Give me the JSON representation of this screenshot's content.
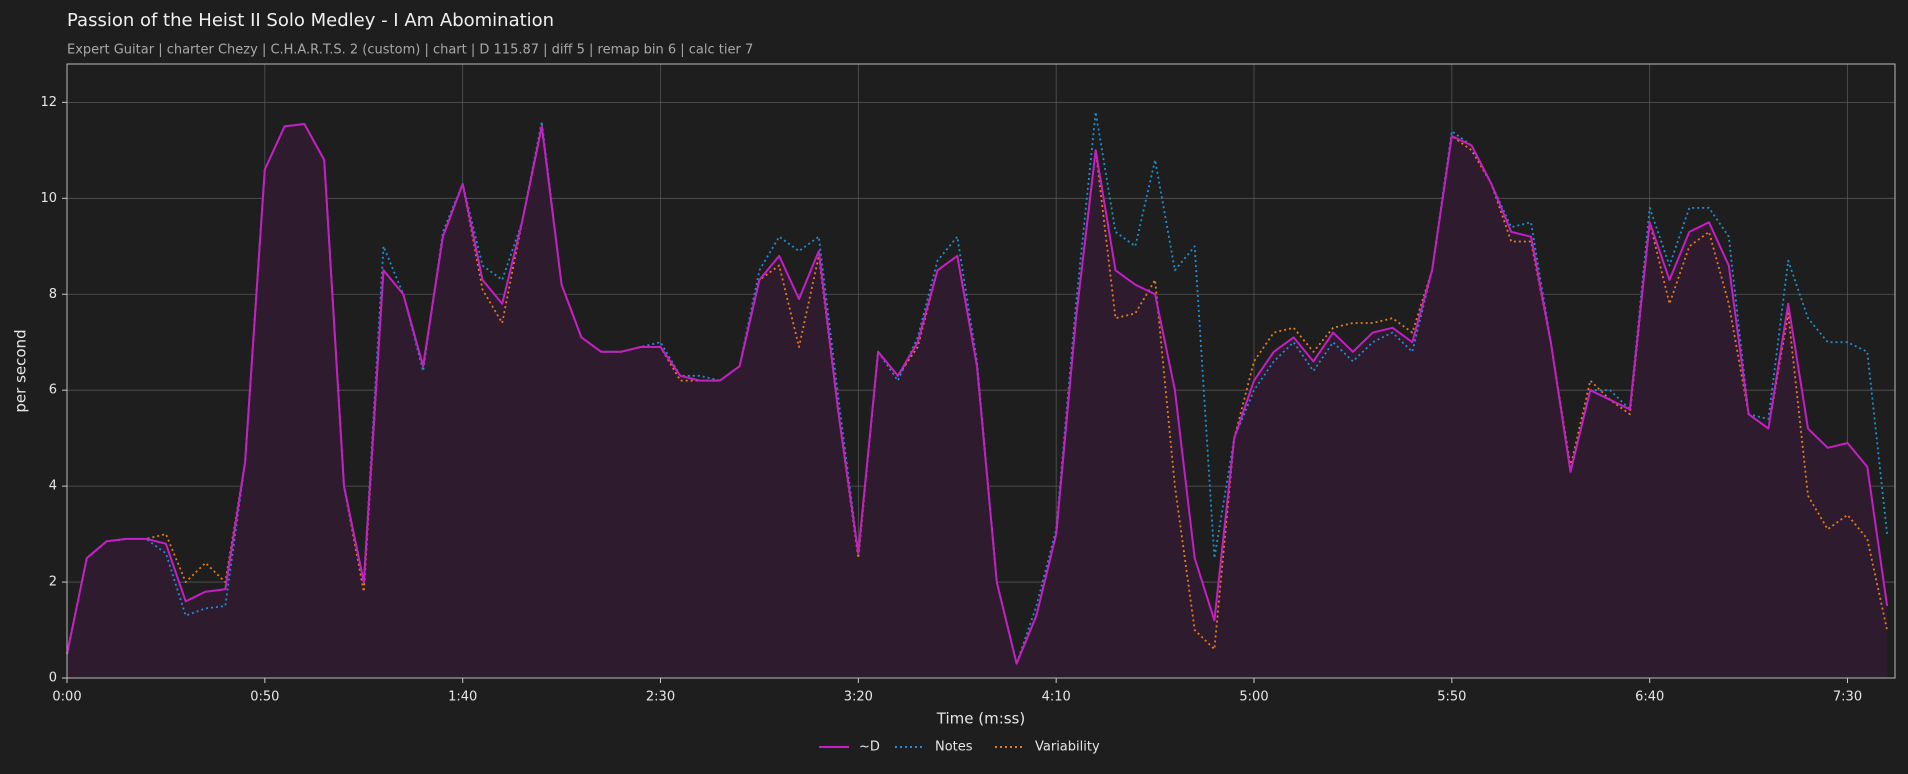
{
  "chart_data": {
    "type": "line",
    "title": "Passion of the Heist II Solo Medley - I Am Abomination",
    "subtitle": "Expert Guitar  |  charter Chezy  |  C.H.A.R.T.S. 2 (custom)  |  chart  |  D 115.87  |  diff 5  |  remap bin 6  |  calc tier 7",
    "x_label": "Time (m:ss)",
    "y_label": "per second",
    "x": [
      0,
      5,
      10,
      15,
      20,
      25,
      30,
      35,
      40,
      45,
      50,
      55,
      60,
      65,
      70,
      75,
      80,
      85,
      90,
      95,
      100,
      105,
      110,
      115,
      120,
      125,
      130,
      135,
      140,
      145,
      150,
      155,
      160,
      165,
      170,
      175,
      180,
      185,
      190,
      195,
      200,
      205,
      210,
      215,
      220,
      225,
      230,
      235,
      240,
      245,
      250,
      255,
      260,
      265,
      270,
      275,
      280,
      285,
      290,
      295,
      300,
      305,
      310,
      315,
      320,
      325,
      330,
      335,
      340,
      345,
      350,
      355,
      360,
      365,
      370,
      375,
      380,
      385,
      390,
      395,
      400,
      405,
      410,
      415,
      420,
      425,
      430,
      435,
      440,
      445,
      450,
      455,
      460
    ],
    "series": [
      {
        "name": "~D",
        "color": "#c41fc4",
        "style": "solid",
        "fill": "#2e1b2e",
        "values": [
          0.5,
          2.5,
          2.85,
          2.9,
          2.9,
          2.8,
          1.6,
          1.8,
          1.85,
          4.5,
          10.6,
          11.5,
          11.55,
          10.8,
          4.0,
          2.0,
          8.5,
          8.0,
          6.5,
          9.2,
          10.3,
          8.3,
          7.8,
          9.5,
          11.5,
          8.2,
          7.1,
          6.8,
          6.8,
          6.9,
          6.9,
          6.3,
          6.2,
          6.2,
          6.5,
          8.3,
          8.8,
          7.9,
          8.9,
          5.5,
          2.6,
          6.8,
          6.3,
          7.0,
          8.5,
          8.8,
          6.5,
          2.0,
          0.3,
          1.3,
          3.0,
          7.5,
          11.0,
          8.5,
          8.2,
          8.0,
          6.0,
          2.5,
          1.2,
          5.0,
          6.2,
          6.8,
          7.1,
          6.6,
          7.2,
          6.8,
          7.2,
          7.3,
          7.0,
          8.5,
          11.3,
          11.1,
          10.3,
          9.3,
          9.2,
          7.0,
          4.3,
          6.0,
          5.8,
          5.6,
          9.5,
          8.3,
          9.3,
          9.5,
          8.6,
          5.5,
          5.2,
          7.8,
          5.2,
          4.8,
          4.9,
          4.4,
          1.5
        ]
      },
      {
        "name": "Notes",
        "color": "#1f8fd0",
        "style": "dotted",
        "values": [
          0.5,
          2.5,
          2.85,
          2.9,
          2.9,
          2.6,
          1.3,
          1.45,
          1.5,
          4.5,
          10.6,
          11.5,
          11.55,
          10.8,
          4.0,
          2.0,
          9.0,
          8.0,
          6.4,
          9.3,
          10.3,
          8.6,
          8.3,
          9.5,
          11.6,
          8.2,
          7.1,
          6.8,
          6.8,
          6.9,
          7.0,
          6.3,
          6.3,
          6.2,
          6.5,
          8.5,
          9.2,
          8.9,
          9.2,
          5.8,
          2.6,
          6.8,
          6.2,
          7.1,
          8.7,
          9.2,
          6.6,
          2.0,
          0.3,
          1.5,
          3.1,
          7.8,
          11.8,
          9.3,
          9.0,
          10.8,
          8.5,
          9.0,
          2.5,
          5.0,
          6.0,
          6.6,
          7.0,
          6.4,
          7.0,
          6.6,
          7.0,
          7.2,
          6.8,
          8.5,
          11.4,
          11.1,
          10.3,
          9.4,
          9.5,
          7.0,
          4.3,
          6.0,
          6.0,
          5.6,
          9.8,
          8.6,
          9.8,
          9.8,
          9.2,
          5.5,
          5.4,
          8.7,
          7.5,
          7.0,
          7.0,
          6.8,
          3.0
        ]
      },
      {
        "name": "Variability",
        "color": "#e37c1c",
        "style": "dotted",
        "values": [
          0.5,
          2.5,
          2.85,
          2.9,
          2.9,
          3.0,
          2.0,
          2.4,
          2.0,
          4.5,
          10.6,
          11.5,
          11.55,
          10.8,
          4.0,
          1.8,
          8.5,
          8.0,
          6.5,
          9.2,
          10.3,
          8.1,
          7.4,
          9.5,
          11.5,
          8.2,
          7.1,
          6.8,
          6.8,
          6.9,
          6.9,
          6.2,
          6.2,
          6.2,
          6.5,
          8.3,
          8.6,
          6.9,
          8.8,
          5.5,
          2.5,
          6.8,
          6.3,
          6.9,
          8.5,
          8.8,
          6.5,
          2.0,
          0.3,
          1.3,
          3.0,
          7.5,
          11.0,
          7.5,
          7.6,
          8.3,
          4.0,
          1.0,
          0.6,
          5.0,
          6.6,
          7.2,
          7.3,
          6.8,
          7.3,
          7.4,
          7.4,
          7.5,
          7.2,
          8.5,
          11.3,
          11.0,
          10.3,
          9.1,
          9.1,
          7.0,
          4.4,
          6.2,
          5.8,
          5.5,
          9.5,
          7.8,
          9.0,
          9.3,
          7.8,
          5.5,
          5.2,
          7.6,
          3.8,
          3.1,
          3.4,
          2.9,
          1.0
        ]
      }
    ],
    "xlim": [
      0,
      462
    ],
    "ylim": [
      0,
      12.8
    ],
    "xticks": [
      {
        "value": 0,
        "label": "0:00"
      },
      {
        "value": 50,
        "label": "0:50"
      },
      {
        "value": 100,
        "label": "1:40"
      },
      {
        "value": 150,
        "label": "2:30"
      },
      {
        "value": 200,
        "label": "3:20"
      },
      {
        "value": 250,
        "label": "4:10"
      },
      {
        "value": 300,
        "label": "5:00"
      },
      {
        "value": 350,
        "label": "5:50"
      },
      {
        "value": 400,
        "label": "6:40"
      },
      {
        "value": 450,
        "label": "7:30"
      }
    ],
    "yticks": [
      0,
      2,
      4,
      6,
      8,
      10,
      12
    ],
    "grid": true,
    "legend": "bottom"
  }
}
